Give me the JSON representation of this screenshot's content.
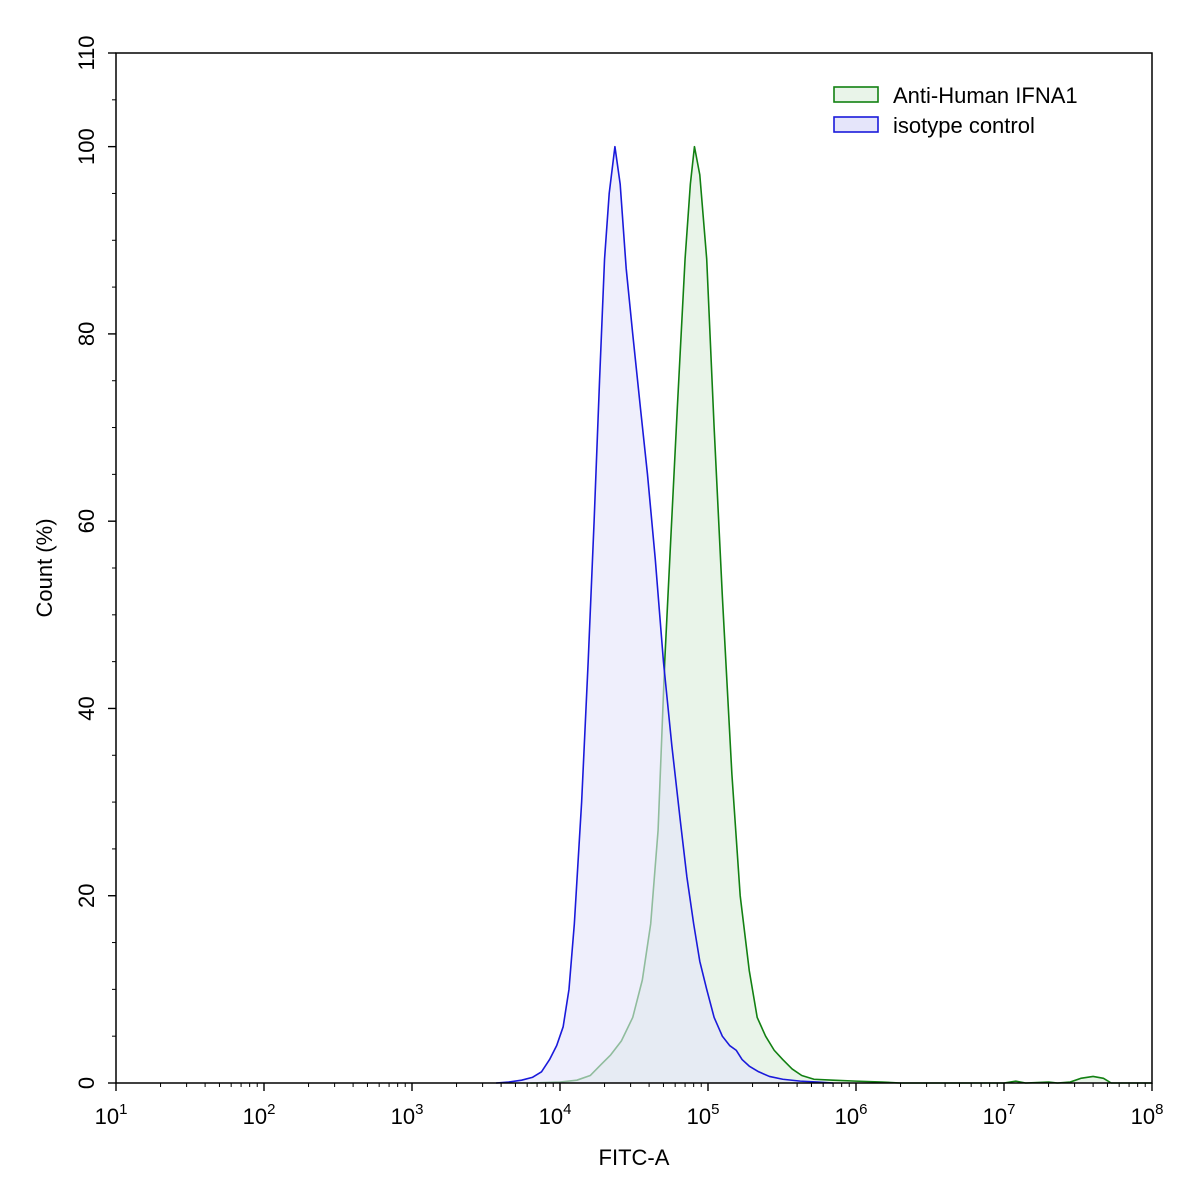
{
  "chart_data": {
    "type": "area",
    "title": "",
    "xlabel": "FITC-A",
    "ylabel": "Count  (%)",
    "xscale": "log",
    "xlim": [
      10,
      100000000
    ],
    "ylim": [
      0,
      110
    ],
    "x_tick_labels": [
      {
        "base": "10",
        "exp": "1"
      },
      {
        "base": "10",
        "exp": "2"
      },
      {
        "base": "10",
        "exp": "3"
      },
      {
        "base": "10",
        "exp": "4"
      },
      {
        "base": "10",
        "exp": "5"
      },
      {
        "base": "10",
        "exp": "6"
      },
      {
        "base": "10",
        "exp": "7"
      },
      {
        "base": "10",
        "exp": "8"
      }
    ],
    "y_ticks": [
      0,
      20,
      40,
      60,
      80,
      100,
      110
    ],
    "y_tick_labels": [
      "0",
      "20",
      "40",
      "60",
      "80",
      "100",
      "110"
    ],
    "grid": false,
    "legend_position": "top-right",
    "series": [
      {
        "name": "Anti-Human IFNA1",
        "color": "#128012",
        "fill": "#e9f4e9",
        "points": [
          [
            6300,
            0
          ],
          [
            10000,
            0.1
          ],
          [
            13000,
            0.3
          ],
          [
            16000,
            0.8
          ],
          [
            19000,
            2
          ],
          [
            22000,
            3
          ],
          [
            26000,
            4.5
          ],
          [
            31000,
            7
          ],
          [
            36000,
            11
          ],
          [
            41000,
            17
          ],
          [
            46000,
            27
          ],
          [
            51000,
            45
          ],
          [
            56000,
            58
          ],
          [
            62000,
            72
          ],
          [
            70000,
            88
          ],
          [
            76000,
            96
          ],
          [
            81000,
            100
          ],
          [
            88000,
            97
          ],
          [
            98000,
            88
          ],
          [
            110000,
            70
          ],
          [
            125000,
            52
          ],
          [
            145000,
            33
          ],
          [
            165000,
            20
          ],
          [
            190000,
            12
          ],
          [
            215000,
            7
          ],
          [
            245000,
            5
          ],
          [
            280000,
            3.5
          ],
          [
            320000,
            2.5
          ],
          [
            370000,
            1.5
          ],
          [
            430000,
            0.8
          ],
          [
            520000,
            0.4
          ],
          [
            700000,
            0.3
          ],
          [
            1000000,
            0.2
          ],
          [
            1500000,
            0.1
          ],
          [
            2000000,
            0
          ],
          [
            10000000,
            0
          ],
          [
            12000000,
            0.2
          ],
          [
            14000000,
            0
          ],
          [
            20000000,
            0.1
          ],
          [
            23000000,
            0
          ],
          [
            28000000,
            0.1
          ],
          [
            33000000,
            0.5
          ],
          [
            40000000,
            0.7
          ],
          [
            47000000,
            0.5
          ],
          [
            53000000,
            0
          ],
          [
            100000000,
            0
          ]
        ]
      },
      {
        "name": "isotype control",
        "color": "#1a1adb",
        "fill": "#e5e5fa",
        "points": [
          [
            3700,
            0
          ],
          [
            4500,
            0.1
          ],
          [
            5500,
            0.3
          ],
          [
            6500,
            0.6
          ],
          [
            7500,
            1.2
          ],
          [
            8500,
            2.5
          ],
          [
            9500,
            4
          ],
          [
            10500,
            6
          ],
          [
            11500,
            10
          ],
          [
            12500,
            17
          ],
          [
            14000,
            30
          ],
          [
            15500,
            45
          ],
          [
            17000,
            60
          ],
          [
            18500,
            75
          ],
          [
            20000,
            88
          ],
          [
            21500,
            95
          ],
          [
            23500,
            100
          ],
          [
            25500,
            96
          ],
          [
            28000,
            87
          ],
          [
            31000,
            80
          ],
          [
            35000,
            72
          ],
          [
            39000,
            65
          ],
          [
            44000,
            56
          ],
          [
            50000,
            45
          ],
          [
            57000,
            36
          ],
          [
            65000,
            28
          ],
          [
            72000,
            22
          ],
          [
            80000,
            17
          ],
          [
            88000,
            13
          ],
          [
            98000,
            10
          ],
          [
            110000,
            7
          ],
          [
            125000,
            5
          ],
          [
            140000,
            4
          ],
          [
            155000,
            3.5
          ],
          [
            170000,
            2.5
          ],
          [
            190000,
            1.8
          ],
          [
            220000,
            1.2
          ],
          [
            260000,
            0.7
          ],
          [
            320000,
            0.4
          ],
          [
            420000,
            0.2
          ],
          [
            550000,
            0.1
          ],
          [
            700000,
            0
          ]
        ]
      }
    ]
  }
}
